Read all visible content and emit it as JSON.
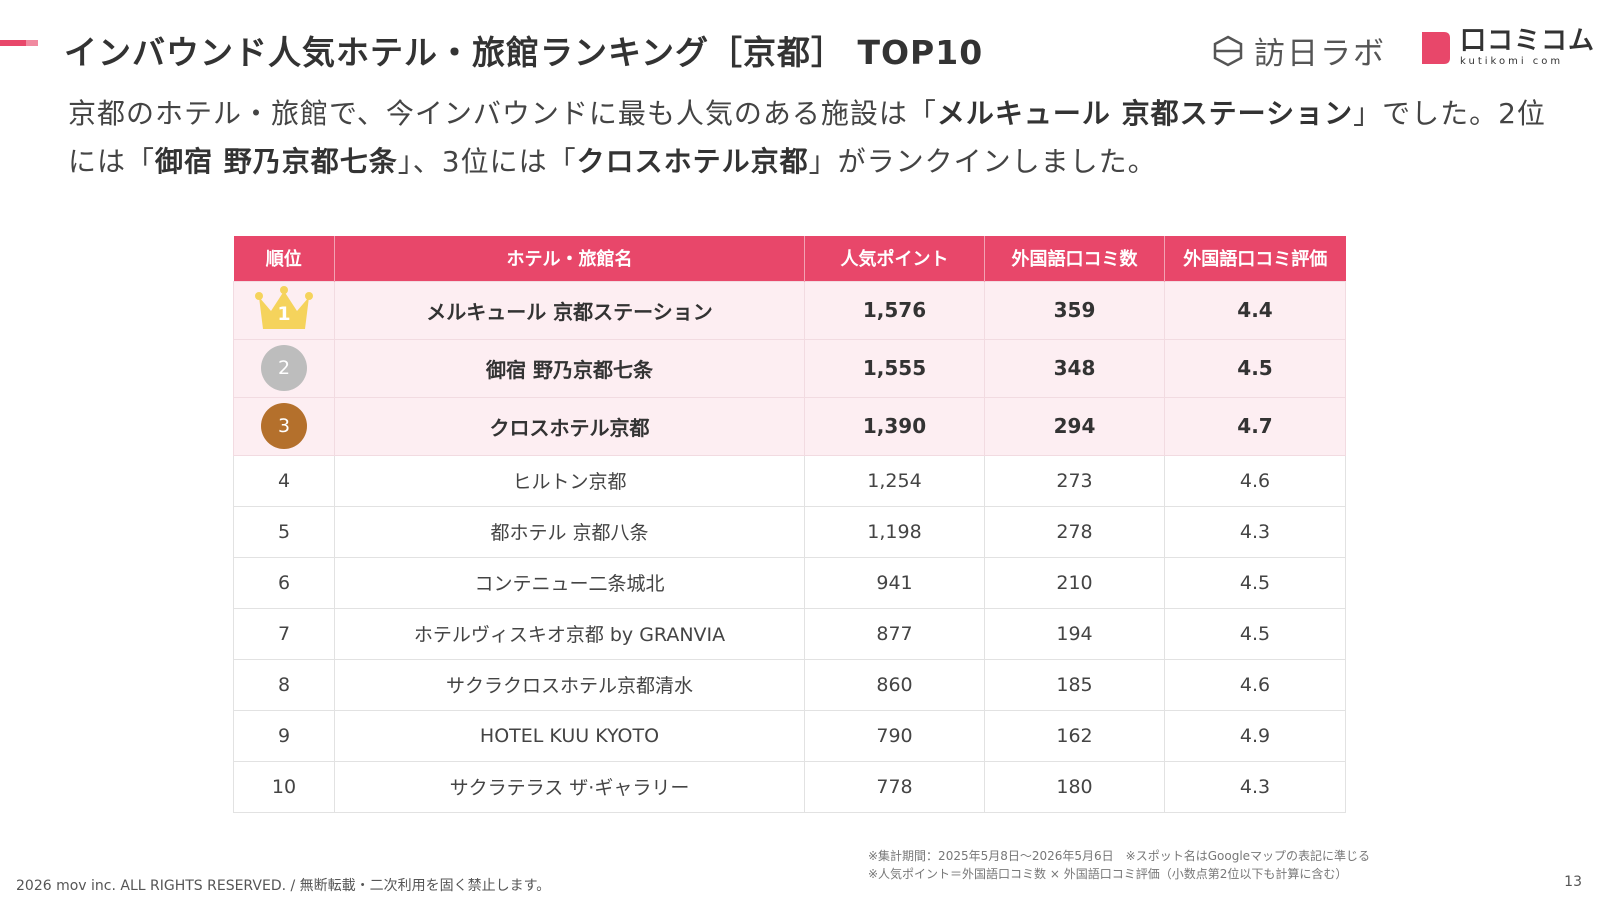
{
  "header": {
    "title": "インバウンド人気ホテル・旅館ランキング［京都］ TOP10",
    "brand_houjin": "訪日ラボ",
    "brand_kutikomi": "口コミコム",
    "brand_kutikomi_sub": "kutikomi com"
  },
  "lead": {
    "p1": "京都のホテル・旅館で、今インバウンドに最も人気のある施設は「",
    "b1": "メルキュール 京都ステーション",
    "p2": "」でした。2位には「",
    "b2": "御宿 野乃京都七条",
    "p3": "」、3位には「",
    "b3": "クロスホテル京都",
    "p4": "」がランクインしました。"
  },
  "table": {
    "headers": [
      "順位",
      "ホテル・旅館名",
      "人気ポイント",
      "外国語口コミ数",
      "外国語口コミ評価"
    ],
    "rows": [
      {
        "rank": "1",
        "name": "メルキュール 京都ステーション",
        "points": "1,576",
        "reviews": "359",
        "rating": "4.4"
      },
      {
        "rank": "2",
        "name": "御宿 野乃京都七条",
        "points": "1,555",
        "reviews": "348",
        "rating": "4.5"
      },
      {
        "rank": "3",
        "name": "クロスホテル京都",
        "points": "1,390",
        "reviews": "294",
        "rating": "4.7"
      },
      {
        "rank": "4",
        "name": "ヒルトン京都",
        "points": "1,254",
        "reviews": "273",
        "rating": "4.6"
      },
      {
        "rank": "5",
        "name": "都ホテル 京都八条",
        "points": "1,198",
        "reviews": "278",
        "rating": "4.3"
      },
      {
        "rank": "6",
        "name": "コンテニュー二条城北",
        "points": "941",
        "reviews": "210",
        "rating": "4.5"
      },
      {
        "rank": "7",
        "name": "ホテルヴィスキオ京都 by GRANVIA",
        "points": "877",
        "reviews": "194",
        "rating": "4.5"
      },
      {
        "rank": "8",
        "name": "サクラクロスホテル京都清水",
        "points": "860",
        "reviews": "185",
        "rating": "4.6"
      },
      {
        "rank": "9",
        "name": "HOTEL KUU KYOTO",
        "points": "790",
        "reviews": "162",
        "rating": "4.9"
      },
      {
        "rank": "10",
        "name": "サクラテラス ザ·ギャラリー",
        "points": "778",
        "reviews": "180",
        "rating": "4.3"
      }
    ]
  },
  "notes": {
    "line1": "※集計期間：2025年5月8日〜2026年5月6日　※スポット名はGoogleマップの表記に準じる",
    "line2": "※人気ポイント＝外国語口コミ数 × 外国語口コミ評価（小数点第2位以下も計算に含む）"
  },
  "footer": {
    "copyright": "2026 mov inc. ALL RIGHTS RESERVED. / 無断転載・二次利用を固く禁止します。",
    "page": "13"
  },
  "colors": {
    "accent": "#e8476a",
    "top_row_bg": "#fdeef2",
    "gold": "#f5d35c",
    "silver": "#bdbdbd",
    "bronze": "#b4702c"
  },
  "icons": {
    "rank1": "crown-icon",
    "rank2": "silver-medal-icon",
    "rank3": "bronze-medal-icon"
  }
}
